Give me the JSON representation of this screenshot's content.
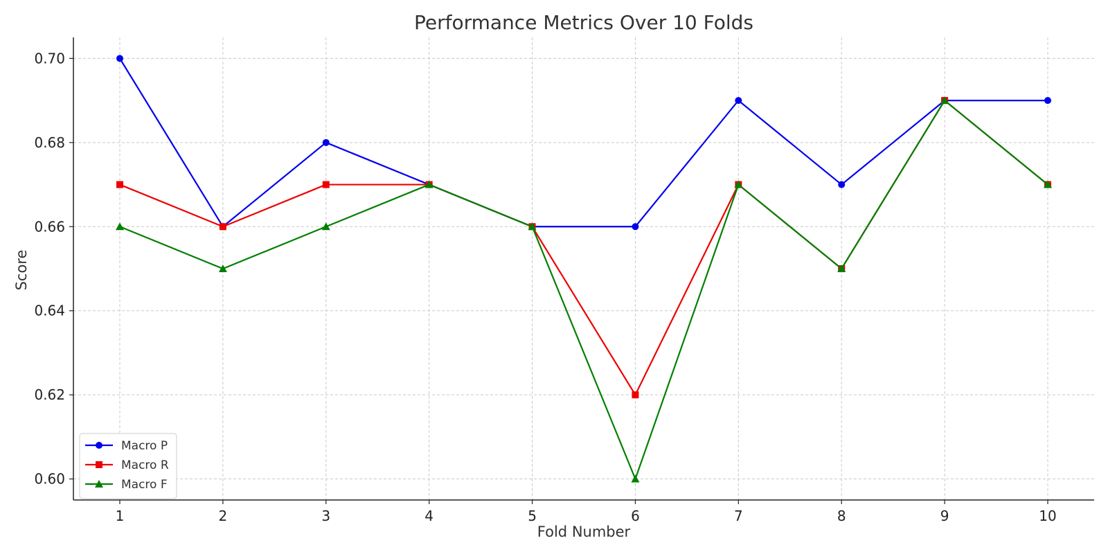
{
  "chart_data": {
    "type": "line",
    "title": "Performance Metrics Over 10 Folds",
    "xlabel": "Fold Number",
    "ylabel": "Score",
    "x": [
      1,
      2,
      3,
      4,
      5,
      6,
      7,
      8,
      9,
      10
    ],
    "xlim": [
      0.55,
      10.45
    ],
    "ylim": [
      0.595,
      0.705
    ],
    "xticks": [
      "1",
      "2",
      "3",
      "4",
      "5",
      "6",
      "7",
      "8",
      "9",
      "10"
    ],
    "yticks": [
      "0.60",
      "0.62",
      "0.64",
      "0.66",
      "0.68",
      "0.70"
    ],
    "grid": true,
    "legend_position": "lower-left",
    "series": [
      {
        "name": "Macro P",
        "color": "#0000ee",
        "marker": "circle",
        "values": [
          0.7,
          0.66,
          0.68,
          0.67,
          0.66,
          0.66,
          0.69,
          0.67,
          0.69,
          0.69
        ]
      },
      {
        "name": "Macro R",
        "color": "#ee0000",
        "marker": "square",
        "values": [
          0.67,
          0.66,
          0.67,
          0.67,
          0.66,
          0.62,
          0.67,
          0.65,
          0.69,
          0.67
        ]
      },
      {
        "name": "Macro F",
        "color": "#008000",
        "marker": "triangle",
        "values": [
          0.66,
          0.65,
          0.66,
          0.67,
          0.66,
          0.6,
          0.67,
          0.65,
          0.69,
          0.67
        ]
      }
    ]
  }
}
